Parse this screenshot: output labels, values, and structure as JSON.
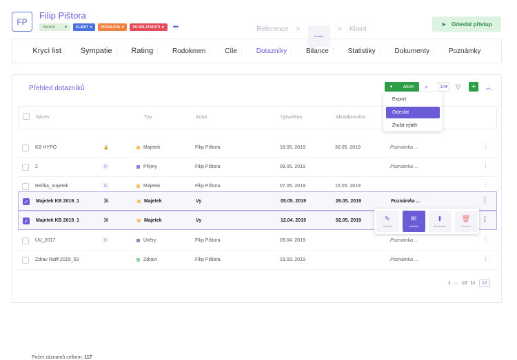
{
  "header": {
    "avatar_initials": "FP",
    "name": "Filip Pištora",
    "status_label": "Aktivní",
    "tags": [
      {
        "label": "KLIENT",
        "color": "#4a6fe0"
      },
      {
        "label": "PRODLOVA",
        "color": "#f0803c"
      },
      {
        "label": "PO SPLATNOSTI",
        "color": "#e44a5a"
      }
    ],
    "more_icon": "three-dots-icon",
    "breadcrumbs": [
      "Reference",
      "Kontakt",
      "Klient"
    ],
    "breadcrumb_separator": ">",
    "send_access_label": "Odeslat přístup"
  },
  "tabs": [
    "Krycí list",
    "Sympatie",
    "Rating",
    "Rodokmen",
    "Cíle",
    "Dotazníky",
    "Bilance",
    "Statistiky",
    "Dokumenty",
    "Poznámky"
  ],
  "active_tab": "Dotazníky",
  "panel": {
    "title": "Přehled dotazníků",
    "akce_label": "Akce",
    "page_size": "10",
    "columns": [
      "Název",
      "Typ",
      "Autor",
      "Vytvořeno",
      "Akutalizováno"
    ],
    "menu_items": [
      "Export",
      "Odeslat",
      "Zrušit výběr"
    ],
    "menu_highlighted": "Odeslat",
    "rows": [
      {
        "name": "KB HYPO",
        "icon": "lock-icon",
        "type": "Majetek",
        "type_color": "#f5c26b",
        "author": "Filip Pištora",
        "created": "18.05. 2019",
        "updated": "30.05. 2019",
        "note": "Poznámka ...",
        "selected": false
      },
      {
        "name": "2",
        "icon": "rss-icon",
        "type": "Příjmy",
        "type_color": "#8f7ee8",
        "author": "Filip Pištora",
        "created": "09.05. 2019",
        "updated": "",
        "note": "Poznámka ...",
        "selected": false
      },
      {
        "name": "Reifka_majetek",
        "icon": "rss-icon",
        "type": "Majetek",
        "type_color": "#f5c26b",
        "author": "Filip Pištora",
        "created": "07.05. 2019",
        "updated": "15.05. 2019",
        "note": "",
        "selected": false
      },
      {
        "name": "Majetek KB 2019_1",
        "icon": "rss-icon",
        "type": "Majetek",
        "type_color": "#f5c26b",
        "author": "Vy",
        "created": "05.05. 2019",
        "updated": "26.05. 2019",
        "note": "Poznámka ...",
        "selected": true
      },
      {
        "name": "Majetek KB 2019_1",
        "icon": "rss-icon",
        "type": "Majetek",
        "type_color": "#f5c26b",
        "author": "Vy",
        "created": "12.04. 2019",
        "updated": "02.05. 2019",
        "note": "",
        "selected": true
      },
      {
        "name": "ÚV_2017",
        "icon": "rss-icon",
        "type": "Úvěry",
        "type_color": "#a07cc0",
        "author": "Filip Pištora",
        "created": "09.04. 2019",
        "updated": "",
        "note": "Poznámka ...",
        "selected": false
      },
      {
        "name": "Zdrav Raiff 2019_03",
        "icon": "",
        "type": "Zdraví",
        "type_color": "#8fd49a",
        "author": "Filip Pištora",
        "created": "19.03. 2019",
        "updated": "",
        "note": "Poznámka ...",
        "selected": false
      }
    ],
    "row_actions": [
      {
        "label": "Upravit",
        "icon": "pencil-icon"
      },
      {
        "label": "odeslat",
        "icon": "envelope-icon"
      },
      {
        "label": "Zamknout",
        "icon": "upload-icon"
      },
      {
        "label": "Smazat",
        "icon": "trash-icon"
      }
    ],
    "row_actions_active": "odeslat",
    "total_label": "Počet záznamů celkem:",
    "total_count": "117",
    "pagination": [
      "1",
      "...",
      "10",
      "11",
      "12"
    ],
    "current_page": "12"
  }
}
